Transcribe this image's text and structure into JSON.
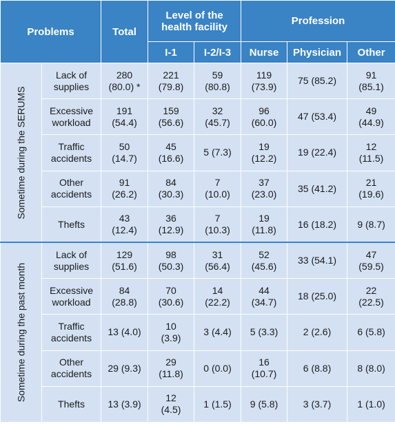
{
  "header": {
    "problems": "Problems",
    "total": "Total",
    "level": "Level of the health facility",
    "level_line1": "Level of the",
    "level_line2": "health facility",
    "profession": "Profession",
    "i1": "I-1",
    "i23": "I-2/I-3",
    "nurse": "Nurse",
    "physician": "Physician",
    "other": "Other"
  },
  "groups": [
    {
      "label": "Sometime during the SERUMS",
      "rows": [
        {
          "problem": [
            "Lack of",
            "supplies"
          ],
          "total": [
            "280",
            "(80.0) *"
          ],
          "i1": [
            "221",
            "(79.8)"
          ],
          "i23": [
            "59",
            "(80.8)"
          ],
          "nurse": [
            "119",
            "(73.9)"
          ],
          "physician": [
            "75 (85.2)"
          ],
          "other": [
            "91",
            "(85.1)"
          ]
        },
        {
          "problem": [
            "Excessive",
            "workload"
          ],
          "total": [
            "191",
            "(54.4)"
          ],
          "i1": [
            "159",
            "(56.6)"
          ],
          "i23": [
            "32",
            "(45.7)"
          ],
          "nurse": [
            "96",
            "(60.0)"
          ],
          "physician": [
            "47 (53.4)"
          ],
          "other": [
            "49",
            "(44.9)"
          ]
        },
        {
          "problem": [
            "Traffic",
            "accidents"
          ],
          "total": [
            "50",
            "(14.7)"
          ],
          "i1": [
            "45",
            "(16.6)"
          ],
          "i23": [
            "5 (7.3)"
          ],
          "nurse": [
            "19",
            "(12.2)"
          ],
          "physician": [
            "19 (22.4)"
          ],
          "other": [
            "12",
            "(11.5)"
          ]
        },
        {
          "problem": [
            "Other",
            "accidents"
          ],
          "total": [
            "91",
            "(26.2)"
          ],
          "i1": [
            "84",
            "(30.3)"
          ],
          "i23": [
            "7",
            "(10.0)"
          ],
          "nurse": [
            "37",
            "(23.0)"
          ],
          "physician": [
            "35 (41.2)"
          ],
          "other": [
            "21",
            "(19.6)"
          ]
        },
        {
          "problem": [
            "Thefts"
          ],
          "total": [
            "43",
            "(12.4)"
          ],
          "i1": [
            "36",
            "(12.9)"
          ],
          "i23": [
            "7",
            "(10.3)"
          ],
          "nurse": [
            "19",
            "(11.8)"
          ],
          "physician": [
            "16 (18.2)"
          ],
          "other": [
            "9 (8.7)"
          ]
        }
      ]
    },
    {
      "label": "Sometime during the past month",
      "rows": [
        {
          "problem": [
            "Lack of",
            "supplies"
          ],
          "total": [
            "129",
            "(51.6)"
          ],
          "i1": [
            "98",
            "(50.3)"
          ],
          "i23": [
            "31",
            "(56.4)"
          ],
          "nurse": [
            "52",
            "(45.6)"
          ],
          "physician": [
            "33 (54.1)"
          ],
          "other": [
            "47",
            "(59.5)"
          ]
        },
        {
          "problem": [
            "Excessive",
            "workload"
          ],
          "total": [
            "84",
            "(28.8)"
          ],
          "i1": [
            "70",
            "(30.6)"
          ],
          "i23": [
            "14",
            "(22.2)"
          ],
          "nurse": [
            "44",
            "(34.7)"
          ],
          "physician": [
            "18 (25.0)"
          ],
          "other": [
            "22",
            "(22.5)"
          ]
        },
        {
          "problem": [
            "Traffic",
            "accidents"
          ],
          "total": [
            "13 (4.0)"
          ],
          "i1": [
            "10",
            "(3.9)"
          ],
          "i23": [
            "3 (4.4)"
          ],
          "nurse": [
            "5 (3.3)"
          ],
          "physician": [
            "2 (2.6)"
          ],
          "other": [
            "6 (5.8)"
          ]
        },
        {
          "problem": [
            "Other",
            "accidents"
          ],
          "total": [
            "29 (9.3)"
          ],
          "i1": [
            "29",
            "(11.8)"
          ],
          "i23": [
            "0 (0.0)"
          ],
          "nurse": [
            "16",
            "(10.7)"
          ],
          "physician": [
            "6 (8.8)"
          ],
          "other": [
            "8 (8.0)"
          ]
        },
        {
          "problem": [
            "Thefts"
          ],
          "total": [
            "13 (3.9)"
          ],
          "i1": [
            "12",
            "(4.5)"
          ],
          "i23": [
            "1 (1.5)"
          ],
          "nurse": [
            "9 (5.8)"
          ],
          "physician": [
            "3 (3.7)"
          ],
          "other": [
            "1 (1.0)"
          ]
        }
      ]
    }
  ]
}
